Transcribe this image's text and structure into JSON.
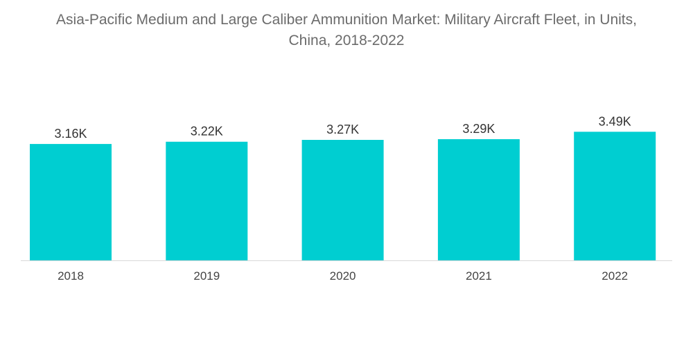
{
  "chart_data": {
    "type": "bar",
    "title_line1": "Asia-Pacific Medium and Large Caliber Ammunition Market: Military Aircraft Fleet, in Units,",
    "title_line2": "China, 2018-2022",
    "categories": [
      "2018",
      "2019",
      "2020",
      "2021",
      "2022"
    ],
    "values": [
      3160,
      3220,
      3270,
      3290,
      3490
    ],
    "value_labels": [
      "3.16K",
      "3.22K",
      "3.27K",
      "3.29K",
      "3.49K"
    ],
    "xlabel": "",
    "ylabel": "",
    "grid": false,
    "legend": "none",
    "bar_color": "#00ced1"
  }
}
